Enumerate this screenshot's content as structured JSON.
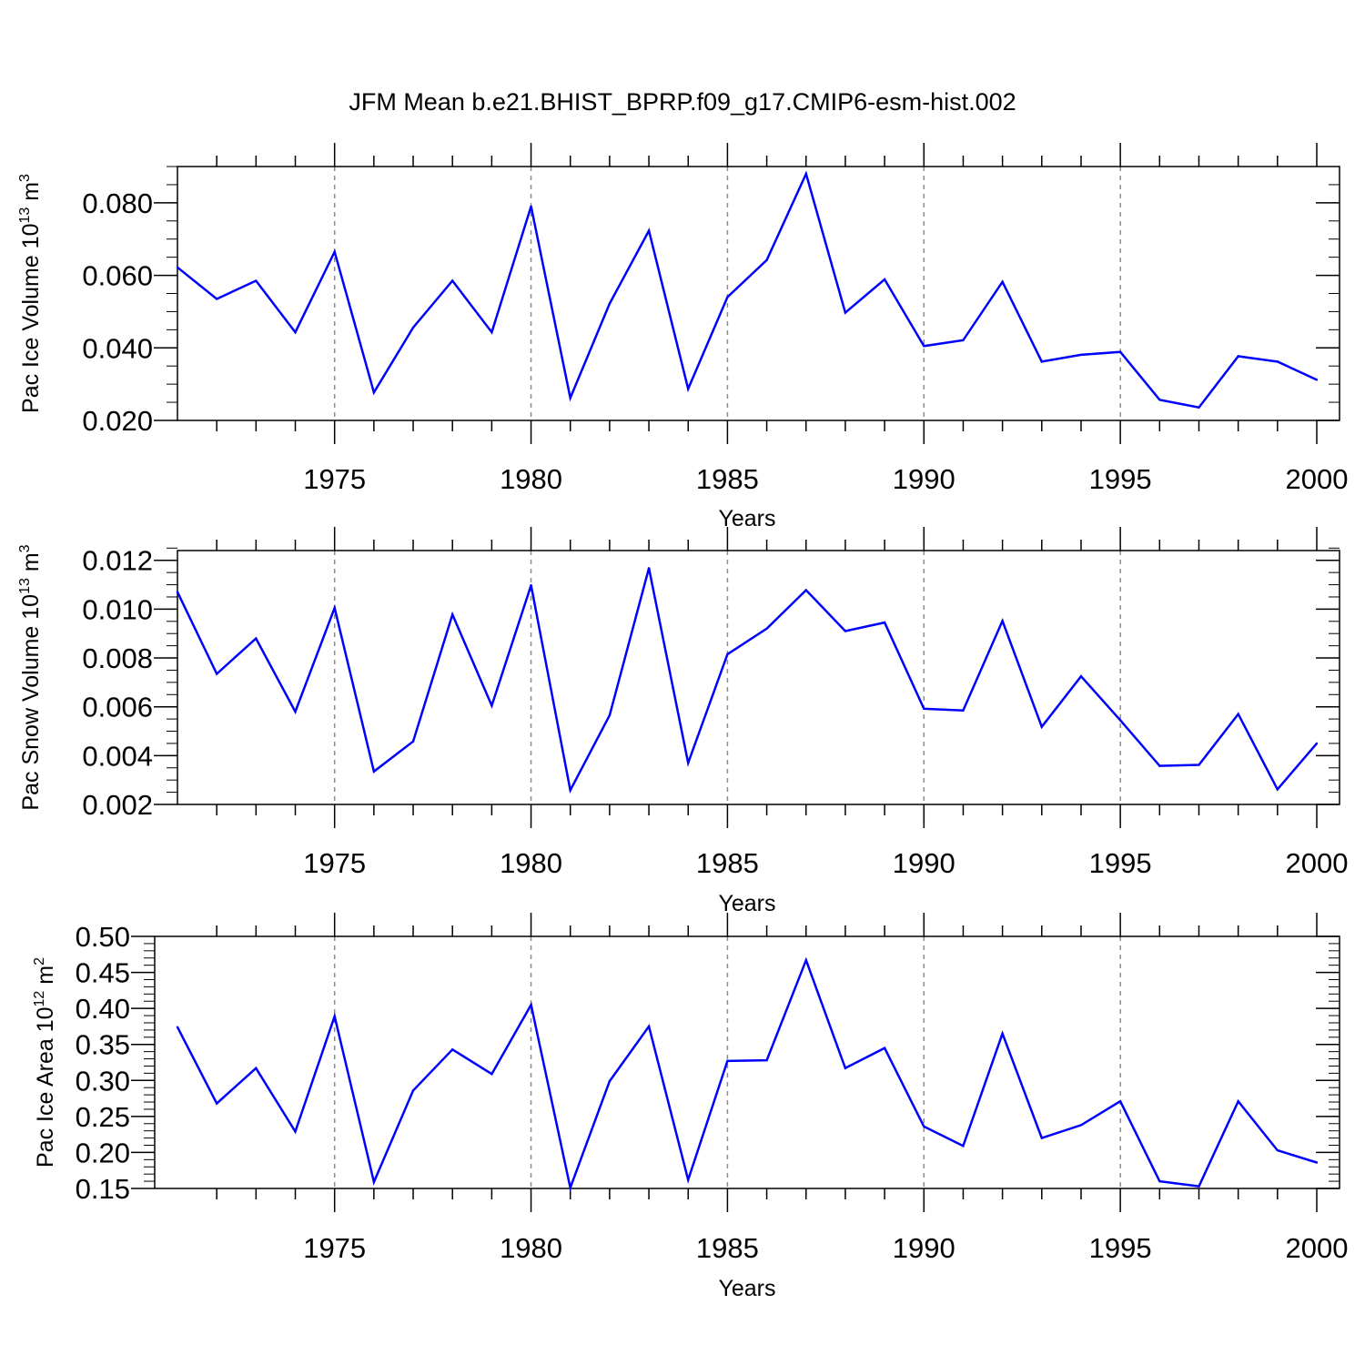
{
  "figure": {
    "title": "JFM Mean b.e21.BHIST_BPRP.f09_g17.CMIP6-esm-hist.002"
  },
  "colors": {
    "line": "#0000ff",
    "axis": "#000000",
    "grid": "#8c8c8c"
  },
  "chart_data": [
    {
      "type": "line",
      "name": "pac-ice-volume",
      "xlabel": "Years",
      "ylabel": "Pac Ice Volume 10",
      "ylabel_exp": "13",
      "ylabel_unit": " m",
      "ylabel_unit_exp": "3",
      "xlim": [
        1971,
        2000
      ],
      "ylim": [
        0.02,
        0.09
      ],
      "xticks": [
        1975,
        1980,
        1985,
        1990,
        1995,
        2000
      ],
      "xtick_labels": [
        "1975",
        "1980",
        "1985",
        "1990",
        "1995",
        "2000"
      ],
      "yticks": [
        0.02,
        0.04,
        0.06,
        0.08
      ],
      "ytick_labels": [
        "0.020",
        "0.040",
        "0.060",
        "0.080"
      ],
      "yminor_step": 0.005,
      "grid": "vertical-dashed",
      "series": [
        {
          "name": "Pac Ice Volume",
          "x": [
            1971,
            1972,
            1973,
            1974,
            1975,
            1976,
            1977,
            1978,
            1979,
            1980,
            1981,
            1982,
            1983,
            1984,
            1985,
            1986,
            1987,
            1988,
            1989,
            1990,
            1991,
            1992,
            1993,
            1994,
            1995,
            1996,
            1997,
            1998,
            1999,
            2000
          ],
          "values": [
            0.0622,
            0.0535,
            0.0585,
            0.0443,
            0.0665,
            0.0277,
            0.0456,
            0.0585,
            0.0443,
            0.079,
            0.0262,
            0.0522,
            0.0723,
            0.0287,
            0.054,
            0.0642,
            0.088,
            0.0497,
            0.0589,
            0.0405,
            0.0421,
            0.0582,
            0.0362,
            0.0381,
            0.0389,
            0.0257,
            0.0236,
            0.0377,
            0.0362,
            0.0312
          ]
        }
      ]
    },
    {
      "type": "line",
      "name": "pac-snow-volume",
      "xlabel": "Years",
      "ylabel": "Pac Snow Volume 10",
      "ylabel_exp": "13",
      "ylabel_unit": " m",
      "ylabel_unit_exp": "3",
      "xlim": [
        1971,
        2000
      ],
      "ylim": [
        0.002,
        0.0124
      ],
      "xticks": [
        1975,
        1980,
        1985,
        1990,
        1995,
        2000
      ],
      "xtick_labels": [
        "1975",
        "1980",
        "1985",
        "1990",
        "1995",
        "2000"
      ],
      "yticks": [
        0.002,
        0.004,
        0.006,
        0.008,
        0.01,
        0.012
      ],
      "ytick_labels": [
        "0.002",
        "0.004",
        "0.006",
        "0.008",
        "0.010",
        "0.012"
      ],
      "yminor_step": 0.0005,
      "grid": "vertical-dashed",
      "series": [
        {
          "name": "Pac Snow Volume",
          "x": [
            1971,
            1972,
            1973,
            1974,
            1975,
            1976,
            1977,
            1978,
            1979,
            1980,
            1981,
            1982,
            1983,
            1984,
            1985,
            1986,
            1987,
            1988,
            1989,
            1990,
            1991,
            1992,
            1993,
            1994,
            1995,
            1996,
            1997,
            1998,
            1999,
            2000
          ],
          "values": [
            0.0107,
            0.00735,
            0.0088,
            0.0058,
            0.01005,
            0.00335,
            0.00458,
            0.00978,
            0.00605,
            0.01098,
            0.00258,
            0.00565,
            0.01168,
            0.0037,
            0.00815,
            0.0092,
            0.01078,
            0.0091,
            0.00945,
            0.00592,
            0.00585,
            0.00952,
            0.00518,
            0.00725,
            0.00545,
            0.00358,
            0.00362,
            0.0057,
            0.00262,
            0.0045
          ]
        }
      ]
    },
    {
      "type": "line",
      "name": "pac-ice-area",
      "xlabel": "Years",
      "ylabel": "Pac Ice Area 10",
      "ylabel_exp": "12",
      "ylabel_unit": " m",
      "ylabel_unit_exp": "2",
      "xlim": [
        1971,
        2000
      ],
      "ylim": [
        0.15,
        0.5
      ],
      "xticks": [
        1975,
        1980,
        1985,
        1990,
        1995,
        2000
      ],
      "xtick_labels": [
        "1975",
        "1980",
        "1985",
        "1990",
        "1995",
        "2000"
      ],
      "yticks": [
        0.15,
        0.2,
        0.25,
        0.3,
        0.35,
        0.4,
        0.45,
        0.5
      ],
      "ytick_labels": [
        "0.15",
        "0.20",
        "0.25",
        "0.30",
        "0.35",
        "0.40",
        "0.45",
        "0.50"
      ],
      "yminor_step": 0.01,
      "grid": "vertical-dashed",
      "series": [
        {
          "name": "Pac Ice Area",
          "x": [
            1971,
            1972,
            1973,
            1974,
            1975,
            1976,
            1977,
            1978,
            1979,
            1980,
            1981,
            1982,
            1983,
            1984,
            1985,
            1986,
            1987,
            1988,
            1989,
            1990,
            1991,
            1992,
            1993,
            1994,
            1995,
            1996,
            1997,
            1998,
            1999,
            2000
          ],
          "values": [
            0.374,
            0.268,
            0.317,
            0.229,
            0.389,
            0.159,
            0.286,
            0.343,
            0.309,
            0.405,
            0.151,
            0.299,
            0.375,
            0.162,
            0.327,
            0.328,
            0.467,
            0.317,
            0.345,
            0.236,
            0.209,
            0.365,
            0.22,
            0.238,
            0.271,
            0.16,
            0.153,
            0.271,
            0.203,
            0.186
          ]
        }
      ]
    }
  ]
}
